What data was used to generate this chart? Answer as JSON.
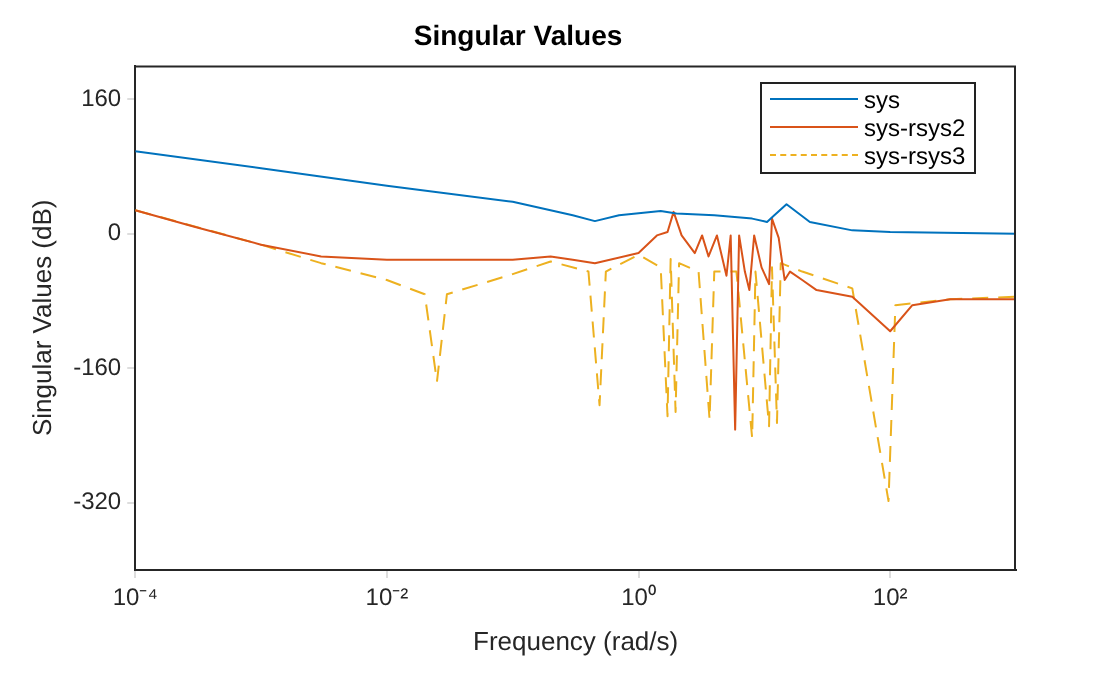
{
  "chart_data": {
    "type": "line",
    "title": "Singular Values",
    "xlabel": "Frequency (rad/s)",
    "ylabel": "Singular Values (dB)",
    "log": "x",
    "xlim": [
      0.0001,
      1000
    ],
    "xticks": [
      {
        "value": 0.0001,
        "label": "10⁻⁴"
      },
      {
        "value": 0.01,
        "label": "10⁻²"
      },
      {
        "value": 1,
        "label": "10⁰"
      },
      {
        "value": 100,
        "label": "10²"
      }
    ],
    "ylim": [
      -400,
      200
    ],
    "yticks": [
      160,
      0,
      -160,
      -320
    ],
    "grid": false,
    "legend": "top right",
    "series": [
      {
        "name": "sys",
        "color": "#0072bd",
        "line_style": "solid",
        "x": [
          0.0001,
          0.001,
          0.01,
          0.1,
          0.3,
          0.45,
          0.7,
          1.5,
          2,
          4,
          8,
          10.5,
          12,
          15,
          23,
          50,
          100,
          1000
        ],
        "values": [
          98,
          78,
          57,
          38,
          22,
          15,
          22,
          27,
          24,
          22,
          18,
          14,
          22,
          35,
          14,
          4,
          2,
          0
        ]
      },
      {
        "name": "sys-rsys2",
        "color": "#d95319",
        "line_style": "solid",
        "x": [
          0.0001,
          0.0003,
          0.001,
          0.003,
          0.01,
          0.1,
          0.2,
          0.3,
          0.45,
          1,
          1.4,
          1.7,
          1.9,
          2.2,
          2.8,
          3.2,
          3.6,
          4.2,
          5,
          5.4,
          5.86,
          6.3,
          7,
          7.6,
          8.3,
          9.5,
          10.9,
          11.5,
          13,
          14.5,
          16,
          20,
          26,
          50,
          100,
          150,
          300,
          1000
        ],
        "values": [
          28,
          8,
          -13,
          -27,
          -31,
          -31,
          -27,
          -31,
          -35,
          -23,
          -2,
          2,
          26,
          -2,
          -23,
          -2,
          -27,
          -2,
          -50,
          -2,
          -233,
          -2,
          -45,
          -67,
          -2,
          -40,
          -60,
          18,
          -5,
          -55,
          -45,
          -55,
          -67,
          -75,
          -116,
          -85,
          -78,
          -78
        ]
      },
      {
        "name": "sys-rsys3",
        "color": "#edb120",
        "line_style": "dashed",
        "x": [
          0.0001,
          0.001,
          0.003,
          0.01,
          0.02,
          0.025,
          0.03,
          0.1,
          0.2,
          0.4,
          0.49,
          0.55,
          1,
          1.5,
          1.7,
          1.8,
          1.97,
          2.1,
          3,
          3.67,
          4,
          6,
          8,
          8.5,
          10.9,
          11.5,
          12.6,
          13.5,
          20,
          50,
          97,
          110,
          300,
          1000
        ],
        "values": [
          28,
          -13,
          -35,
          -55,
          -72,
          -176,
          -72,
          -48,
          -33,
          -45,
          -204,
          -45,
          -25,
          -40,
          -217,
          -30,
          -212,
          -35,
          -45,
          -221,
          -45,
          -45,
          -243,
          -45,
          -229,
          -40,
          -225,
          -35,
          -45,
          -65,
          -318,
          -85,
          -78,
          -75
        ]
      }
    ]
  }
}
